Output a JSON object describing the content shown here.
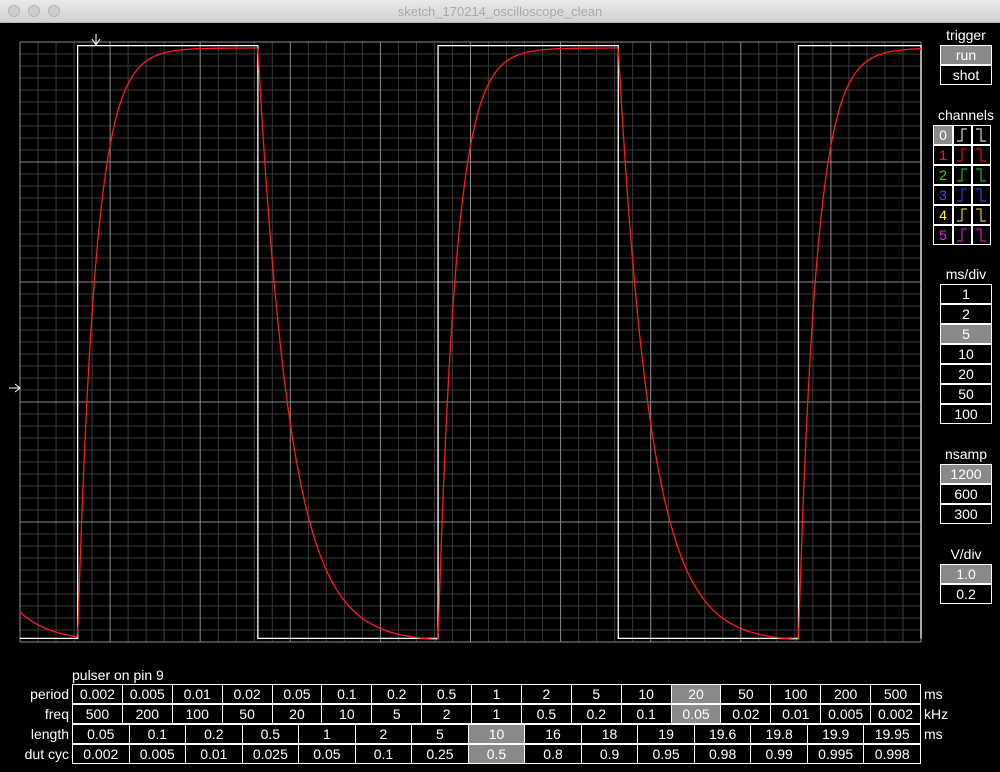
{
  "window": {
    "title": "sketch_170214_oscilloscope_clean"
  },
  "colors": {
    "ch0": "#ffffff",
    "ch1": "#ff1a1a",
    "ch2": "#22dd22",
    "ch3": "#3355ff",
    "ch4": "#ffee22",
    "ch5": "#ee22ee",
    "grid_major": "#8c8c8c",
    "grid_minor": "#3a3a3a",
    "selected": "#8a8a8a"
  },
  "trigger": {
    "label": "trigger",
    "buttons": [
      {
        "label": "run",
        "selected": true
      },
      {
        "label": "shot",
        "selected": false
      }
    ]
  },
  "channels": {
    "label": "channels",
    "items": [
      {
        "num": "0",
        "rise": "⎍",
        "fall": "⎍",
        "selected": true,
        "color": "#ffffff"
      },
      {
        "num": "1",
        "rise": "⎍",
        "fall": "⎍",
        "selected": false,
        "color": "#ff1a1a"
      },
      {
        "num": "2",
        "rise": "⎍",
        "fall": "⎍",
        "selected": false,
        "color": "#22dd22"
      },
      {
        "num": "3",
        "rise": "⎍",
        "fall": "⎍",
        "selected": false,
        "color": "#3355ff"
      },
      {
        "num": "4",
        "rise": "⎍",
        "fall": "⎍",
        "selected": false,
        "color": "#ffee22"
      },
      {
        "num": "5",
        "rise": "⎍",
        "fall": "⎍",
        "selected": false,
        "color": "#ee22ee"
      }
    ]
  },
  "ms_div": {
    "label": "ms/div",
    "buttons": [
      {
        "label": "1",
        "selected": false
      },
      {
        "label": "2",
        "selected": false
      },
      {
        "label": "5",
        "selected": true
      },
      {
        "label": "10",
        "selected": false
      },
      {
        "label": "20",
        "selected": false
      },
      {
        "label": "50",
        "selected": false
      },
      {
        "label": "100",
        "selected": false
      }
    ]
  },
  "nsamp": {
    "label": "nsamp",
    "buttons": [
      {
        "label": "1200",
        "selected": true
      },
      {
        "label": "600",
        "selected": false
      },
      {
        "label": "300",
        "selected": false
      }
    ]
  },
  "v_div": {
    "label": "V/div",
    "buttons": [
      {
        "label": "1.0",
        "selected": true
      },
      {
        "label": "0.2",
        "selected": false
      }
    ]
  },
  "pulser": {
    "title": "pulser on pin 9",
    "rows": [
      {
        "label": "period",
        "unit": "ms",
        "selected_index": 12,
        "values": [
          "0.002",
          "0.005",
          "0.01",
          "0.02",
          "0.05",
          "0.1",
          "0.2",
          "0.5",
          "1",
          "2",
          "5",
          "10",
          "20",
          "50",
          "100",
          "200",
          "500"
        ]
      },
      {
        "label": "freq",
        "unit": "kHz",
        "selected_index": 12,
        "values": [
          "500",
          "200",
          "100",
          "50",
          "20",
          "10",
          "5",
          "2",
          "1",
          "0.5",
          "0.2",
          "0.1",
          "0.05",
          "0.02",
          "0.01",
          "0.005",
          "0.002"
        ]
      },
      {
        "label": "length",
        "unit": "ms",
        "selected_index": 7,
        "values": [
          "0.05",
          "0.1",
          "0.2",
          "0.5",
          "1",
          "2",
          "5",
          "10",
          "16",
          "18",
          "19",
          "19.6",
          "19.8",
          "19.9",
          "19.95"
        ]
      },
      {
        "label": "dut cyc",
        "unit": "",
        "selected_index": 7,
        "values": [
          "0.002",
          "0.005",
          "0.01",
          "0.025",
          "0.05",
          "0.1",
          "0.25",
          "0.5",
          "0.8",
          "0.9",
          "0.95",
          "0.98",
          "0.99",
          "0.995",
          "0.998"
        ]
      }
    ]
  },
  "chart_data": {
    "type": "line",
    "x_unit_ms_per_div": 5,
    "v_per_div": 1.0,
    "divisions": {
      "x": 10,
      "y": 5
    },
    "series": [
      {
        "channel": 0,
        "color": "#ffffff",
        "shape": "square",
        "period_ms": 20,
        "duty": 0.5,
        "rising_edges_ms": [
          3.2,
          23.2,
          43.2
        ],
        "low_v": 0,
        "high_v": 5
      },
      {
        "channel": 1,
        "color": "#ff1a1a",
        "shape": "rc-response",
        "tau_rise_ms": 1.0,
        "tau_fall_ms": 1.8,
        "low_v": 0,
        "high_v": 4.95
      }
    ]
  }
}
